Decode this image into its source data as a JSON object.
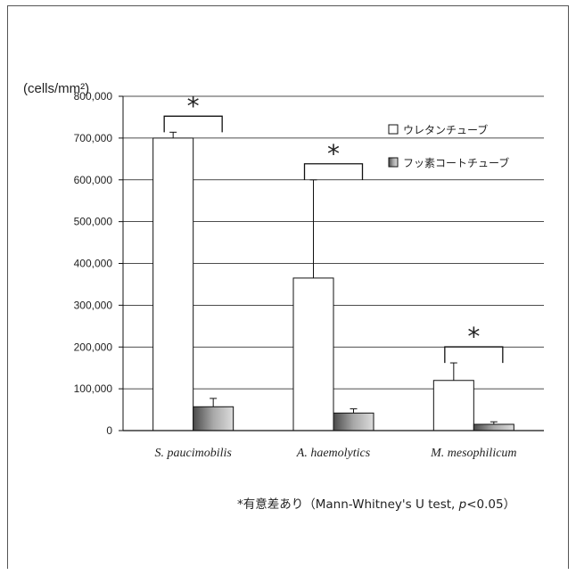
{
  "chart_data": {
    "type": "bar",
    "unit_label": "(cells/mm²)",
    "categories": [
      "S. paucimobilis",
      "A. haemolytics",
      "M. mesophilicum"
    ],
    "series": [
      {
        "name": "ウレタンチューブ",
        "values": [
          700000,
          365000,
          120000
        ],
        "errors": [
          14000,
          235000,
          42000
        ],
        "color": "#ffffff"
      },
      {
        "name": "フッ素コートチューブ",
        "values": [
          57000,
          42000,
          15000
        ],
        "errors": [
          20000,
          10000,
          6000
        ],
        "color": "#909090"
      }
    ],
    "ylim": [
      0,
      800000
    ],
    "yticks": [
      "0",
      "100,000",
      "200,000",
      "300,000",
      "400,000",
      "500,000",
      "600,000",
      "700,000",
      "800,000"
    ],
    "grid": true,
    "legend_position": "top-right",
    "significance_marker": "*",
    "footnote": {
      "prefix": "*有意差あり（Mann-Whitney's U test, ",
      "italic": "p",
      "suffix": "<0.05）"
    }
  }
}
